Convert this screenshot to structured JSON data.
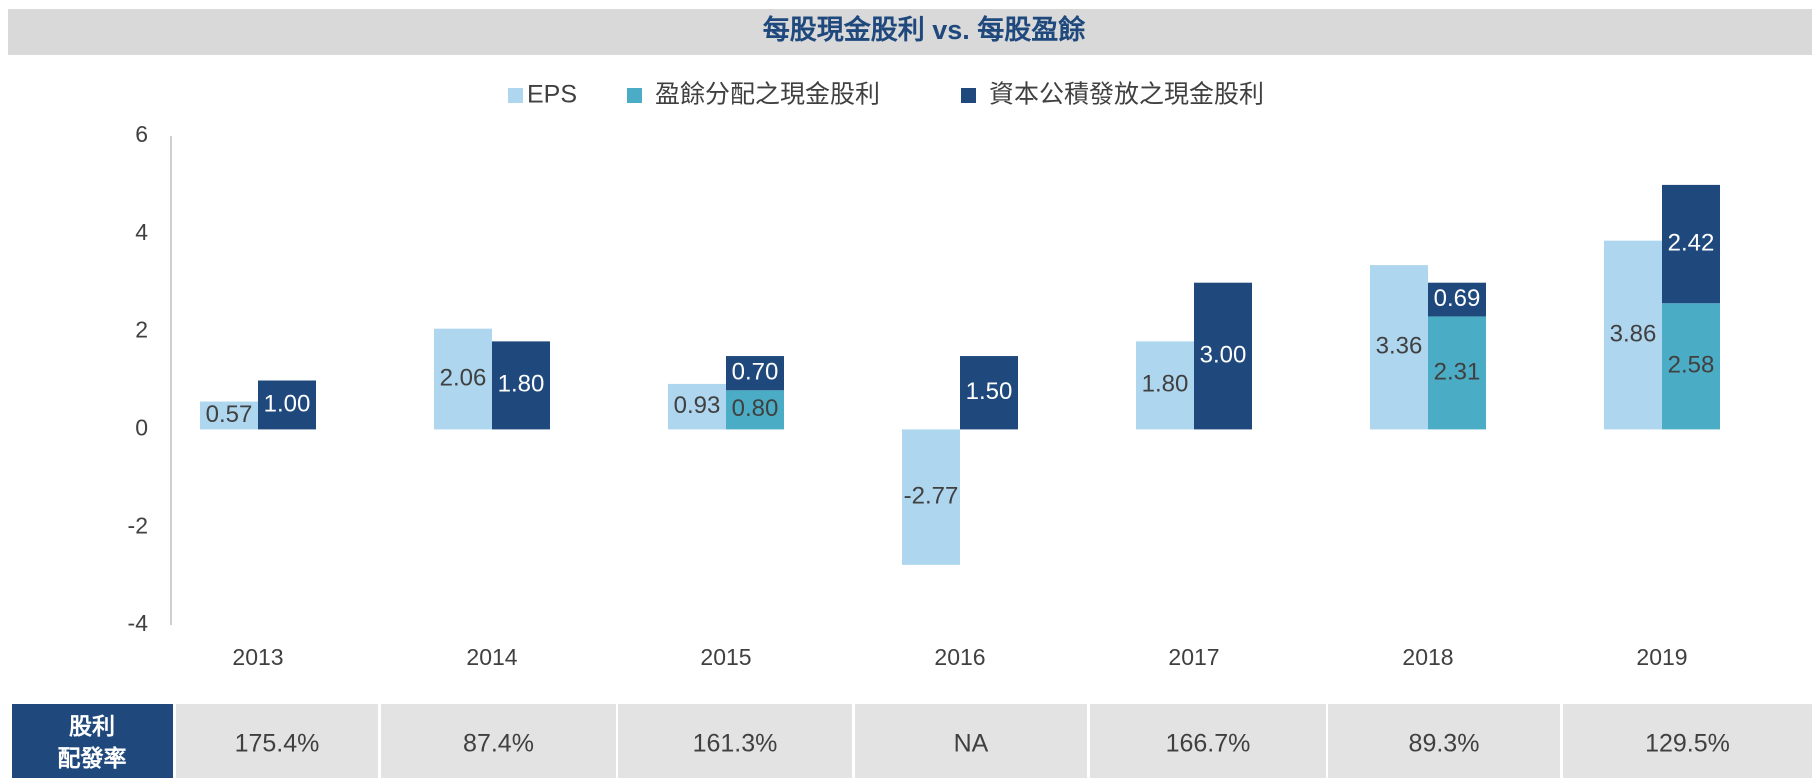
{
  "chart_data": {
    "type": "bar",
    "title": "每股現金股利 vs. 每股盈餘",
    "categories": [
      "2013",
      "2014",
      "2015",
      "2016",
      "2017",
      "2018",
      "2019"
    ],
    "series": [
      {
        "name": "EPS",
        "color": "#aed6ef",
        "stack": "eps",
        "values": [
          0.57,
          2.06,
          0.93,
          -2.77,
          1.8,
          3.36,
          3.86
        ],
        "value_labels": [
          "0.57",
          "2.06",
          "0.93",
          "-2.77",
          "1.80",
          "3.36",
          "3.86"
        ]
      },
      {
        "name": "盈餘分配之現金股利",
        "color": "#4bacc6",
        "stack": "div",
        "values": [
          null,
          null,
          0.8,
          null,
          null,
          2.31,
          2.58
        ],
        "value_labels": [
          null,
          null,
          "0.80",
          null,
          null,
          "2.31",
          "2.58"
        ]
      },
      {
        "name": "資本公積發放之現金股利",
        "color": "#1f497d",
        "stack": "div",
        "values": [
          1.0,
          1.8,
          0.7,
          1.5,
          3.0,
          0.69,
          2.42
        ],
        "value_labels": [
          "1.00",
          "1.80",
          "0.70",
          "1.50",
          "3.00",
          "0.69",
          "2.42"
        ]
      }
    ],
    "ylim": [
      -4,
      6
    ],
    "yticks": [
      -4,
      -2,
      0,
      2,
      4,
      6
    ],
    "grid": false,
    "legend": "top"
  },
  "table": {
    "header": [
      "股利",
      "配發率"
    ],
    "values": [
      "175.4%",
      "87.4%",
      "161.3%",
      "NA",
      "166.7%",
      "89.3%",
      "129.5%"
    ]
  }
}
